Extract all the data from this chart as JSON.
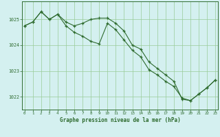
{
  "line1_x": [
    0,
    1,
    2,
    3,
    4,
    5,
    6,
    7,
    8,
    9,
    10,
    11,
    12,
    13,
    14,
    15,
    16,
    17,
    18,
    19,
    20,
    21,
    22,
    23
  ],
  "line1_y": [
    1024.75,
    1024.9,
    1025.3,
    1025.0,
    1025.2,
    1024.9,
    1024.75,
    1024.85,
    1025.0,
    1025.05,
    1025.05,
    1024.85,
    1024.55,
    1024.0,
    1023.85,
    1023.35,
    1023.1,
    1022.85,
    1022.6,
    1021.9,
    1021.85,
    1022.1,
    1022.35,
    1022.65
  ],
  "line2_x": [
    0,
    1,
    2,
    3,
    4,
    5,
    6,
    7,
    8,
    9,
    10,
    11,
    12,
    13,
    14,
    15,
    16,
    17,
    18,
    19,
    20,
    21,
    22,
    23
  ],
  "line2_y": [
    1024.75,
    1024.9,
    1025.3,
    1025.0,
    1025.2,
    1024.75,
    1024.5,
    1024.35,
    1024.15,
    1024.05,
    1024.85,
    1024.6,
    1024.2,
    1023.8,
    1023.55,
    1023.05,
    1022.85,
    1022.6,
    1022.4,
    1021.95,
    1021.85,
    1022.1,
    1022.35,
    1022.65
  ],
  "line_color": "#2d6a2d",
  "bg_color": "#d4f0f0",
  "grid_color": "#98cc98",
  "xlabel": "Graphe pression niveau de la mer (hPa)",
  "ylim": [
    1021.5,
    1025.7
  ],
  "yticks": [
    1022,
    1023,
    1024,
    1025
  ],
  "xticks": [
    0,
    1,
    2,
    3,
    4,
    5,
    6,
    7,
    8,
    9,
    10,
    11,
    12,
    13,
    14,
    15,
    16,
    17,
    18,
    19,
    20,
    21,
    22,
    23
  ],
  "bottom_label_color": "#2d6a2d",
  "tick_label_color": "#2d6a2d"
}
